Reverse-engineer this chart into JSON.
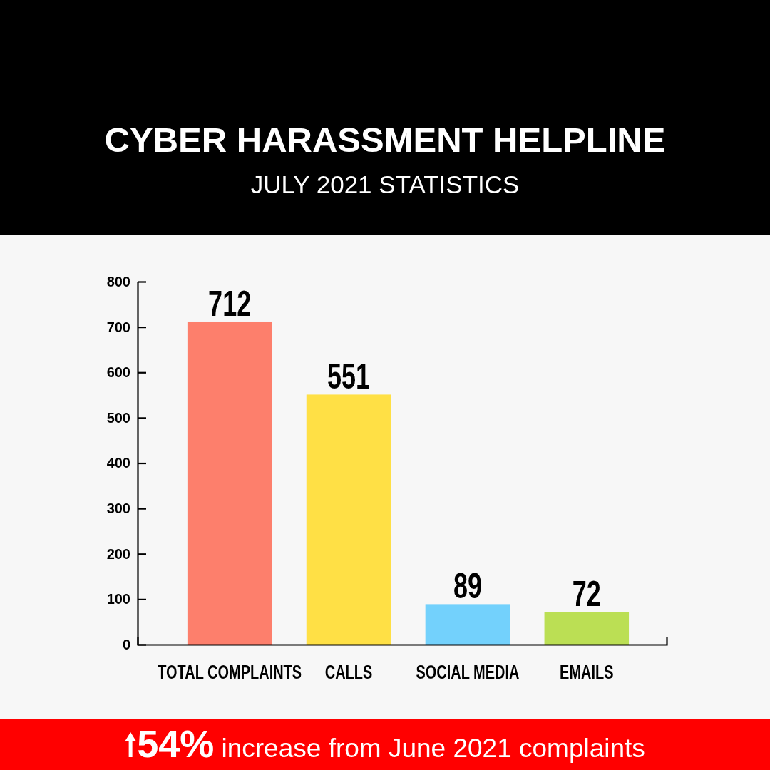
{
  "chart_data": {
    "type": "bar",
    "title": "CYBER HARASSMENT HELPLINE",
    "subtitle": "JULY 2021 STATISTICS",
    "categories": [
      "TOTAL COMPLAINTS",
      "CALLS",
      "SOCIAL MEDIA",
      "EMAILS"
    ],
    "values": [
      712,
      551,
      89,
      72
    ],
    "colors": [
      "#fd7f6c",
      "#ffe045",
      "#73d1fc",
      "#bbdf54"
    ],
    "ylim": [
      0,
      800
    ],
    "yticks": [
      0,
      100,
      200,
      300,
      400,
      500,
      600,
      700,
      800
    ],
    "data_labels": true,
    "annotations": [
      "54% increase from June 2021 complaints"
    ]
  }
}
